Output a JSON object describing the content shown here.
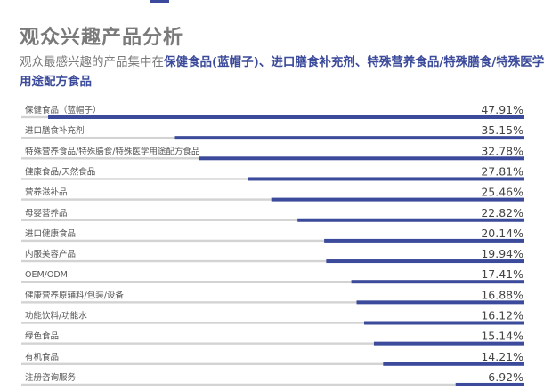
{
  "header": {
    "title": "观众兴趣产品分析",
    "subtitle_lead": "观众最感兴趣的产品集中在",
    "subtitle_emphasis": "保健食品(蓝帽子)、进口膳食补充剂、特殊营养食品/特殊膳食/特殊医学用途配方食品"
  },
  "colors": {
    "bar": "#3b4a9a",
    "track": "#d3d3d3",
    "label": "#555555",
    "value": "#444444"
  },
  "chart_data": {
    "type": "bar",
    "orientation": "horizontal",
    "title": "观众兴趣产品分析",
    "categories": [
      "保健食品（蓝帽子）",
      "进口膳食补充剂",
      "特殊营养食品/特殊膳食/特殊医学用途配方食品",
      "健康食品/天然食品",
      "营养滋补品",
      "母婴营养品",
      "进口健康食品",
      "内服美容产品",
      "OEM/ODM",
      "健康营养原辅料/包装/设备",
      "功能饮料/功能水",
      "绿色食品",
      "有机食品",
      "注册咨询服务"
    ],
    "values": [
      47.91,
      35.15,
      32.78,
      27.81,
      25.46,
      22.82,
      20.14,
      19.94,
      17.41,
      16.88,
      16.12,
      15.14,
      14.21,
      6.92
    ],
    "value_labels": [
      "47.91%",
      "35.15%",
      "32.78%",
      "27.81%",
      "25.46%",
      "22.82%",
      "20.14%",
      "19.94%",
      "17.41%",
      "16.88%",
      "16.12%",
      "15.14%",
      "14.21%",
      "6.92%"
    ],
    "value_unit": "%",
    "xlim": [
      0,
      50
    ],
    "grid": false,
    "legend": "none"
  }
}
